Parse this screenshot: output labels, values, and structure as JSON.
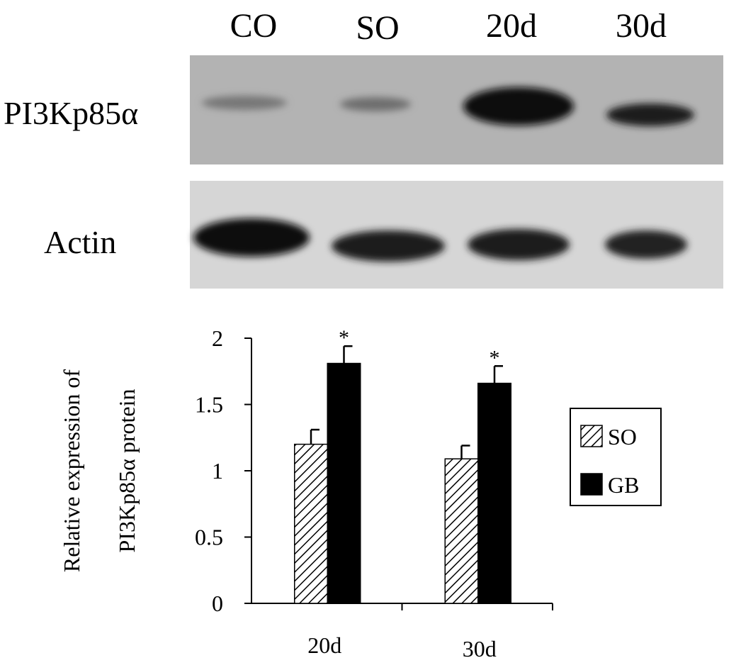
{
  "blot": {
    "lanes": [
      "CO",
      "SO",
      "20d",
      "30d"
    ],
    "rows": [
      "PI3Kp85α",
      "Actin"
    ]
  },
  "chart_data": {
    "type": "bar",
    "ylabel": [
      "Relative expression of",
      "PI3Kp85α protein"
    ],
    "categories": [
      "20d",
      "30d"
    ],
    "series": [
      {
        "name": "SO",
        "color": "#ffffff",
        "hatch": true,
        "values": [
          1.2,
          1.09
        ],
        "errors": [
          0.11,
          0.1
        ]
      },
      {
        "name": "GB",
        "color": "#000000",
        "hatch": false,
        "values": [
          1.81,
          1.66
        ],
        "errors": [
          0.13,
          0.13
        ],
        "significance": [
          "*",
          "*"
        ]
      }
    ],
    "ylim": [
      0,
      2
    ],
    "yticks": [
      0,
      0.5,
      1,
      1.5,
      2
    ],
    "grid": false,
    "legend": "right"
  }
}
